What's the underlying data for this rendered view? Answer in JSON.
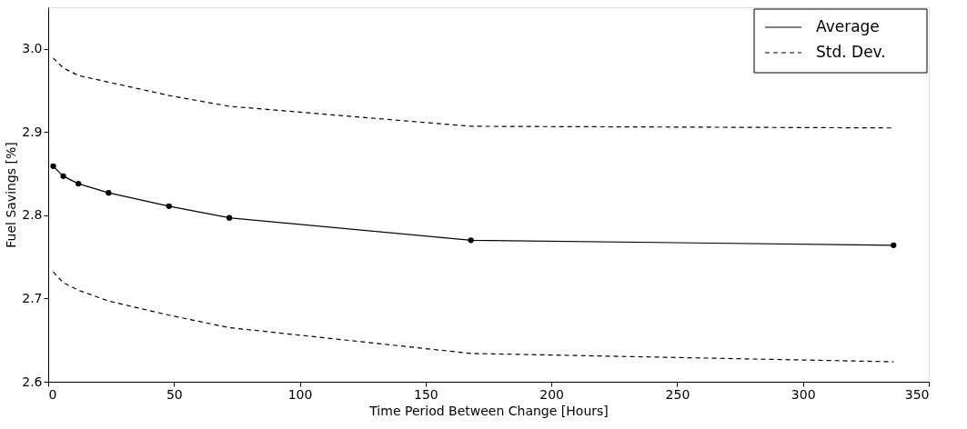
{
  "chart_data": {
    "type": "line",
    "xlabel": "Time Period Between Change [Hours]",
    "ylabel": "Fuel Savings [%]",
    "x": [
      2,
      6,
      12,
      24,
      48,
      72,
      168,
      336
    ],
    "series": [
      {
        "name": "Average",
        "color": "#000000",
        "marker": "circle",
        "line_style": "solid",
        "values": [
          2.859,
          2.847,
          2.838,
          2.827,
          2.811,
          2.797,
          2.77,
          2.764
        ]
      },
      {
        "name": "Std. Dev.",
        "color": "#000000",
        "marker": "none",
        "line_style": "dashed",
        "values": [
          2.989,
          2.977,
          2.968,
          2.96,
          2.944,
          2.931,
          2.907,
          2.905
        ]
      },
      {
        "color": "#000000",
        "marker": "none",
        "line_style": "dashed",
        "values": [
          2.732,
          2.719,
          2.71,
          2.697,
          2.68,
          2.665,
          2.634,
          2.624
        ]
      }
    ],
    "xlim": [
      0,
      350
    ],
    "xticks": [
      0,
      50,
      100,
      150,
      200,
      250,
      300,
      350
    ],
    "ylim": [
      2.6,
      3.05
    ],
    "yticks": [
      2.6,
      2.7,
      2.8,
      2.9,
      {
        "value": 3,
        "label": "3.0"
      }
    ],
    "grid": false,
    "legend": "top right"
  }
}
